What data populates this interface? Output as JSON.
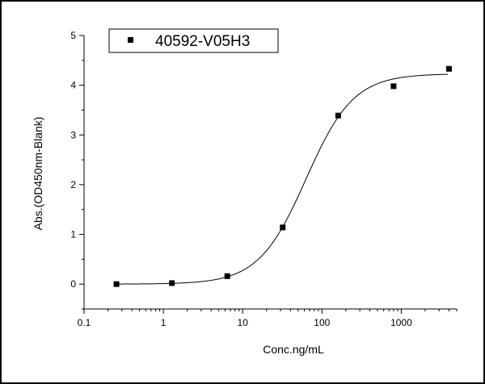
{
  "chart_data": {
    "type": "scatter",
    "xscale": "log",
    "xlabel": "Conc.ng/mL",
    "ylabel": "Abs.(OD450nm-Blank)",
    "xlim": [
      0.1,
      5000
    ],
    "ylim": [
      -0.5,
      5
    ],
    "xticks": [
      {
        "value": 0.1,
        "label": "0.1"
      },
      {
        "value": 1,
        "label": "1"
      },
      {
        "value": 10,
        "label": "10"
      },
      {
        "value": 100,
        "label": "100"
      },
      {
        "value": 1000,
        "label": "1000"
      }
    ],
    "yticks": [
      {
        "value": 0,
        "label": "0"
      },
      {
        "value": 1,
        "label": "1"
      },
      {
        "value": 2,
        "label": "2"
      },
      {
        "value": 3,
        "label": "3"
      },
      {
        "value": 4,
        "label": "4"
      },
      {
        "value": 5,
        "label": "5"
      }
    ],
    "grid": false,
    "legend_position": "top-left",
    "series": [
      {
        "name": "40592-V05H3",
        "marker": "square",
        "color": "#000000",
        "x": [
          0.256,
          1.28,
          6.4,
          32,
          160,
          800,
          4000
        ],
        "y": [
          0.0,
          0.02,
          0.16,
          1.14,
          3.39,
          3.98,
          4.33
        ]
      }
    ],
    "fit_curve": {
      "model": "4PL",
      "bottom": 0.0,
      "top": 4.23,
      "ec50": 63,
      "hill": 1.45,
      "color": "#000000"
    }
  }
}
